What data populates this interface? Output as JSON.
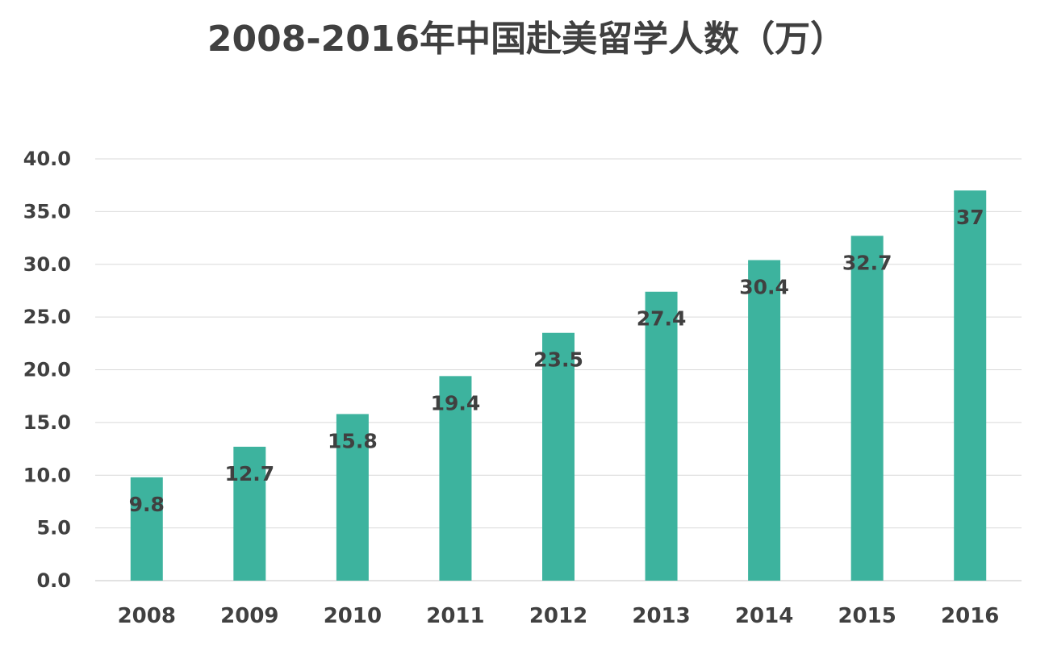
{
  "chart_data": {
    "type": "bar",
    "title": "2008-2016年中国赴美留学人数（万）",
    "categories": [
      "2008",
      "2009",
      "2010",
      "2011",
      "2012",
      "2013",
      "2014",
      "2015",
      "2016"
    ],
    "values": [
      9.8,
      12.7,
      15.8,
      19.4,
      23.5,
      27.4,
      30.4,
      32.7,
      37
    ],
    "data_labels": [
      "9.8",
      "12.7",
      "15.8",
      "19.4",
      "23.5",
      "27.4",
      "30.4",
      "32.7",
      "37"
    ],
    "ylim": [
      0,
      40
    ],
    "yticks": [
      "0.0",
      "5.0",
      "10.0",
      "15.0",
      "20.0",
      "25.0",
      "30.0",
      "35.0",
      "40.0"
    ],
    "ytick_values": [
      0,
      5,
      10,
      15,
      20,
      25,
      30,
      35,
      40
    ],
    "grid": true,
    "legend": "none",
    "bar_color": "#3db39e",
    "grid_color": "#d9d9d9",
    "text_color": "#404040"
  }
}
